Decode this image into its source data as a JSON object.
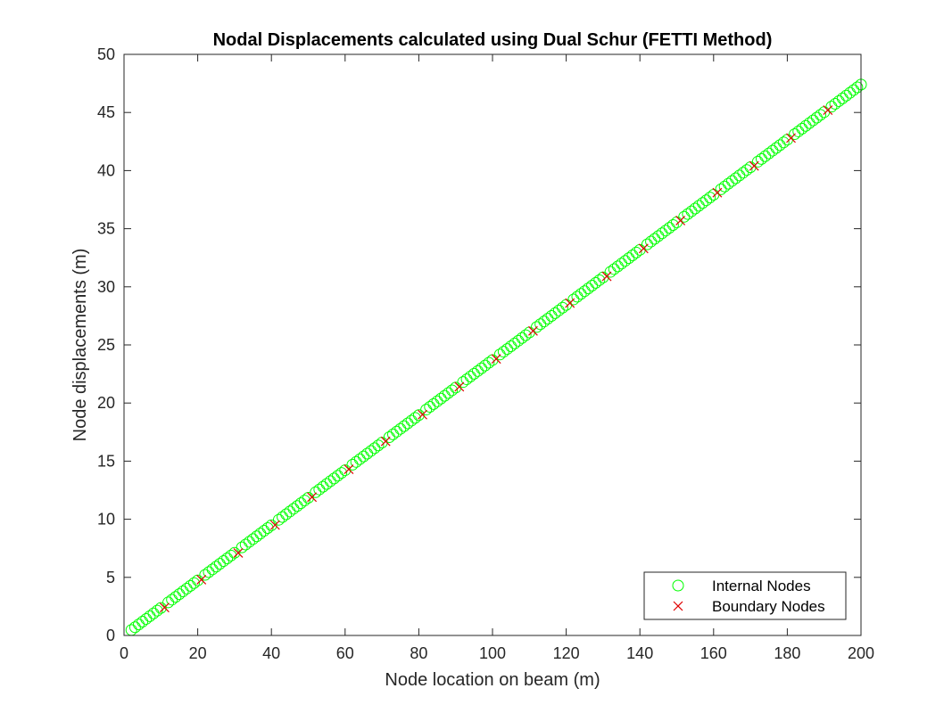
{
  "chart_data": {
    "type": "scatter",
    "title": "Nodal Displacements calculated using Dual Schur (FETTI Method)",
    "xlabel": "Node location on beam (m)",
    "ylabel": "Node displacements (m)",
    "xlim": [
      0,
      200
    ],
    "ylim": [
      0,
      50
    ],
    "xticks": [
      "0",
      "20",
      "40",
      "60",
      "80",
      "100",
      "120",
      "140",
      "160",
      "180",
      "200"
    ],
    "yticks": [
      "0",
      "5",
      "10",
      "15",
      "20",
      "25",
      "30",
      "35",
      "40",
      "45",
      "50"
    ],
    "grid": false,
    "legend_position": "bottom-right",
    "series": [
      {
        "name": "Internal Nodes",
        "marker": "circle",
        "color": "#00ff00",
        "x_range": [
          2,
          200
        ],
        "x_step": 1,
        "excluded_x": [
          11,
          21,
          31,
          41,
          51,
          61,
          71,
          81,
          91,
          101,
          111,
          121,
          131,
          141,
          151,
          161,
          171,
          181,
          191
        ],
        "slope": 0.237,
        "intercept": 0
      },
      {
        "name": "Boundary Nodes",
        "marker": "x",
        "color": "#e00000",
        "x": [
          11,
          21,
          31,
          41,
          51,
          61,
          71,
          81,
          91,
          101,
          111,
          121,
          131,
          141,
          151,
          161,
          171,
          181,
          191
        ],
        "y": [
          2.4,
          4.8,
          7.1,
          9.5,
          11.9,
          14.3,
          16.7,
          19.0,
          21.4,
          23.8,
          26.2,
          28.6,
          30.9,
          33.3,
          35.7,
          38.1,
          40.4,
          42.8,
          45.2
        ]
      }
    ]
  },
  "colors": {
    "axis": "#262626",
    "background": "#ffffff"
  }
}
